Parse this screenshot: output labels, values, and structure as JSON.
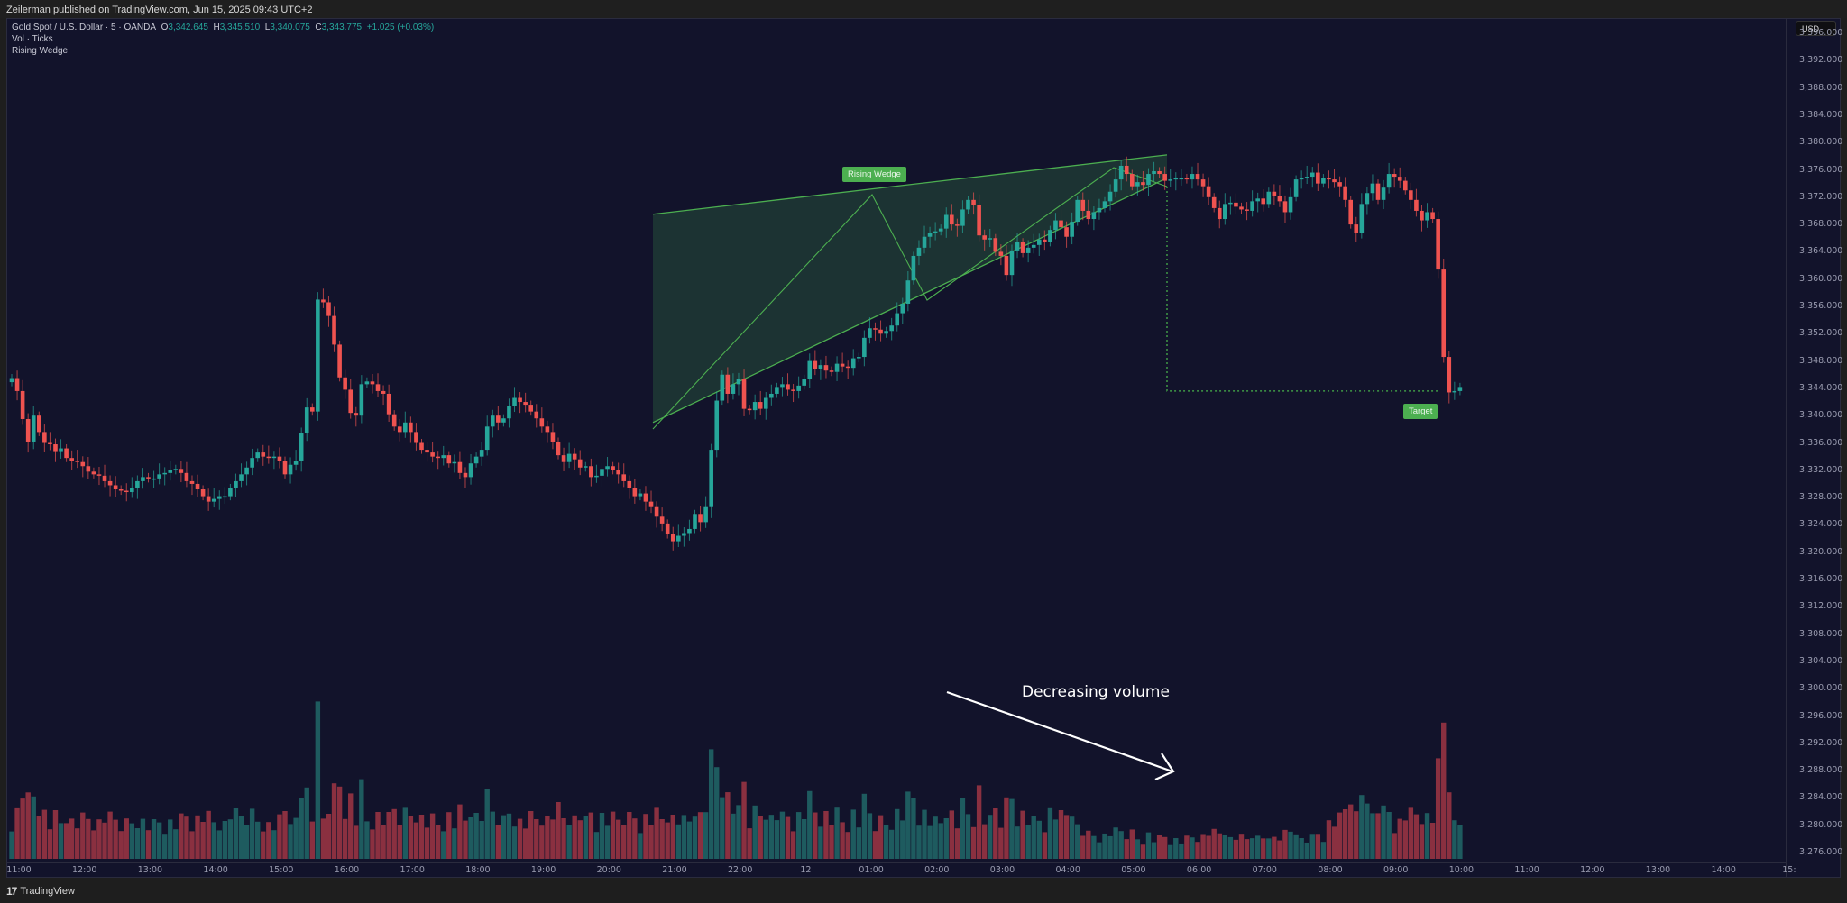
{
  "header": {
    "published_by": "Zeilerman published on TradingView.com, Jun 15, 2025 09:43 UTC+2"
  },
  "legend": {
    "symbol": "Gold Spot / U.S. Dollar · 5 · OANDA",
    "open_label": "O",
    "open": "3,342.645",
    "high_label": "H",
    "high": "3,345.510",
    "low_label": "L",
    "low": "3,340.075",
    "close_label": "C",
    "close": "3,343.775",
    "change": "+1.025 (+0.03%)",
    "indicator_1": "Vol · Ticks",
    "indicator_2": "Rising Wedge"
  },
  "price_axis": {
    "currency": "USD",
    "ticks": [
      "3,396.000",
      "3,392.000",
      "3,388.000",
      "3,384.000",
      "3,380.000",
      "3,376.000",
      "3,372.000",
      "3,368.000",
      "3,364.000",
      "3,360.000",
      "3,356.000",
      "3,352.000",
      "3,348.000",
      "3,344.000",
      "3,340.000",
      "3,336.000",
      "3,332.000",
      "3,328.000",
      "3,324.000",
      "3,320.000",
      "3,316.000",
      "3,312.000",
      "3,308.000",
      "3,304.000",
      "3,300.000",
      "3,296.000",
      "3,292.000",
      "3,288.000",
      "3,284.000",
      "3,280.000",
      "3,276.000"
    ]
  },
  "time_axis": {
    "ticks": [
      "11:00",
      "12:00",
      "13:00",
      "14:00",
      "15:00",
      "16:00",
      "17:00",
      "18:00",
      "19:00",
      "20:00",
      "21:00",
      "22:00",
      "12",
      "01:00",
      "02:00",
      "03:00",
      "04:00",
      "05:00",
      "06:00",
      "07:00",
      "08:00",
      "09:00",
      "10:00",
      "11:00",
      "12:00",
      "13:00",
      "14:00",
      "15:"
    ]
  },
  "annotations": {
    "pattern_label": "Rising Wedge",
    "target_label": "Target",
    "volume_note": "Decreasing volume"
  },
  "footer": {
    "logo": "17",
    "brand": "TradingView"
  },
  "colors": {
    "background": "#12132b",
    "up": "#26a69a",
    "down": "#ef5350",
    "vol_up": "#1e5b5f",
    "vol_down": "#8a3040",
    "wedge_line": "#4caf50",
    "wedge_fill": "#1f3a35"
  },
  "chart_data": {
    "type": "candlestick",
    "title": "Gold Spot / U.S. Dollar · 5 · OANDA",
    "xlabel": "",
    "ylabel": "USD",
    "ylim": [
      3274,
      3398
    ],
    "grid": false,
    "interval": "5m",
    "x_ticks": [
      "11:00",
      "12:00",
      "13:00",
      "14:00",
      "15:00",
      "16:00",
      "17:00",
      "18:00",
      "19:00",
      "20:00",
      "21:00",
      "22:00",
      "12",
      "01:00",
      "02:00",
      "03:00",
      "04:00",
      "05:00",
      "06:00",
      "07:00",
      "08:00",
      "09:00",
      "10:00"
    ],
    "close_series": [
      3345.5,
      3343.6,
      3339.5,
      3336.2,
      3340.0,
      3337.6,
      3336.0,
      3335.8,
      3334.8,
      3335.2,
      3333.8,
      3333.4,
      3333.2,
      3332.6,
      3331.8,
      3331.4,
      3331.2,
      3330.4,
      3329.8,
      3329.2,
      3329.0,
      3328.8,
      3329.4,
      3330.4,
      3331.0,
      3330.8,
      3330.8,
      3331.4,
      3331.6,
      3332.0,
      3332.2,
      3331.6,
      3330.4,
      3330.0,
      3329.2,
      3328.2,
      3327.4,
      3327.8,
      3328.2,
      3328.2,
      3329.4,
      3330.4,
      3331.4,
      3332.4,
      3333.8,
      3334.6,
      3334.0,
      3333.8,
      3334.0,
      3333.4,
      3331.4,
      3332.8,
      3333.4,
      3337.4,
      3341.2,
      3340.6,
      3357.0,
      3356.6,
      3354.6,
      3350.4,
      3345.6,
      3343.8,
      3340.4,
      3340.0,
      3344.6,
      3345.0,
      3344.6,
      3343.6,
      3343.2,
      3340.2,
      3338.4,
      3337.6,
      3339.0,
      3337.6,
      3336.0,
      3335.0,
      3334.6,
      3334.0,
      3333.8,
      3334.2,
      3333.0,
      3333.2,
      3331.6,
      3331.0,
      3333.0,
      3334.0,
      3335.0,
      3338.4,
      3340.0,
      3339.0,
      3339.6,
      3341.4,
      3342.6,
      3342.0,
      3341.6,
      3340.6,
      3339.6,
      3338.4,
      3337.6,
      3336.2,
      3334.2,
      3333.2,
      3334.4,
      3333.6,
      3332.4,
      3332.6,
      3331.0,
      3331.2,
      3332.2,
      3332.6,
      3332.0,
      3331.4,
      3330.4,
      3329.4,
      3328.2,
      3328.6,
      3327.4,
      3326.6,
      3325.2,
      3324.2,
      3322.6,
      3321.6,
      3322.4,
      3322.8,
      3323.4,
      3325.6,
      3324.4,
      3326.6,
      3335.0,
      3342.2,
      3346.0,
      3343.2,
      3344.6,
      3345.4,
      3341.0,
      3340.8,
      3342.0,
      3341.0,
      3342.6,
      3343.2,
      3344.2,
      3344.6,
      3343.8,
      3343.6,
      3344.4,
      3345.4,
      3348.0,
      3346.8,
      3347.4,
      3346.6,
      3346.4,
      3347.6,
      3347.2,
      3347.0,
      3348.4,
      3348.6,
      3351.4,
      3352.8,
      3352.6,
      3352.0,
      3352.4,
      3353.2,
      3355.0,
      3356.4,
      3359.8,
      3363.4,
      3364.6,
      3366.2,
      3366.8,
      3367.0,
      3367.4,
      3369.4,
      3368.0,
      3367.8,
      3370.2,
      3371.6,
      3370.8,
      3366.4,
      3365.8,
      3366.0,
      3364.0,
      3363.4,
      3360.6,
      3364.2,
      3365.4,
      3363.8,
      3364.6,
      3365.0,
      3365.8,
      3365.4,
      3367.2,
      3368.6,
      3367.6,
      3366.2,
      3368.4,
      3371.6,
      3370.0,
      3368.8,
      3369.8,
      3370.4,
      3371.4,
      3372.8,
      3374.6,
      3376.6,
      3375.4,
      3373.6,
      3374.2,
      3373.8,
      3375.4,
      3375.8,
      3375.4,
      3374.4,
      3374.6,
      3374.8,
      3374.8,
      3374.6,
      3375.4,
      3374.6,
      3373.6,
      3372.0,
      3370.4,
      3368.8,
      3371.0,
      3371.2,
      3370.6,
      3370.2,
      3370.0,
      3371.4,
      3371.8,
      3371.0,
      3372.8,
      3372.2,
      3371.4,
      3369.8,
      3372.0,
      3374.6,
      3374.8,
      3375.0,
      3375.6,
      3374.0,
      3374.8,
      3374.6,
      3374.2,
      3373.6,
      3371.6,
      3368.0,
      3366.8,
      3371.0,
      3372.6,
      3374.0,
      3371.6,
      3373.4,
      3375.4,
      3375.0,
      3374.4,
      3373.0,
      3371.6,
      3370.0,
      3368.6,
      3369.8,
      3368.8,
      3361.4,
      3348.6,
      3343.4,
      3343.6,
      3344.2
    ],
    "volume_note": "Decreasing volume",
    "pattern": {
      "name": "Rising Wedge",
      "upper_line": {
        "start": [
          "20:50",
          3369.5
        ],
        "end": [
          "05:30",
          3378.2
        ]
      },
      "lower_line": {
        "start": [
          "20:50",
          3339.0
        ],
        "end": [
          "05:30",
          3374.8
        ]
      },
      "target": 3343.6
    }
  }
}
